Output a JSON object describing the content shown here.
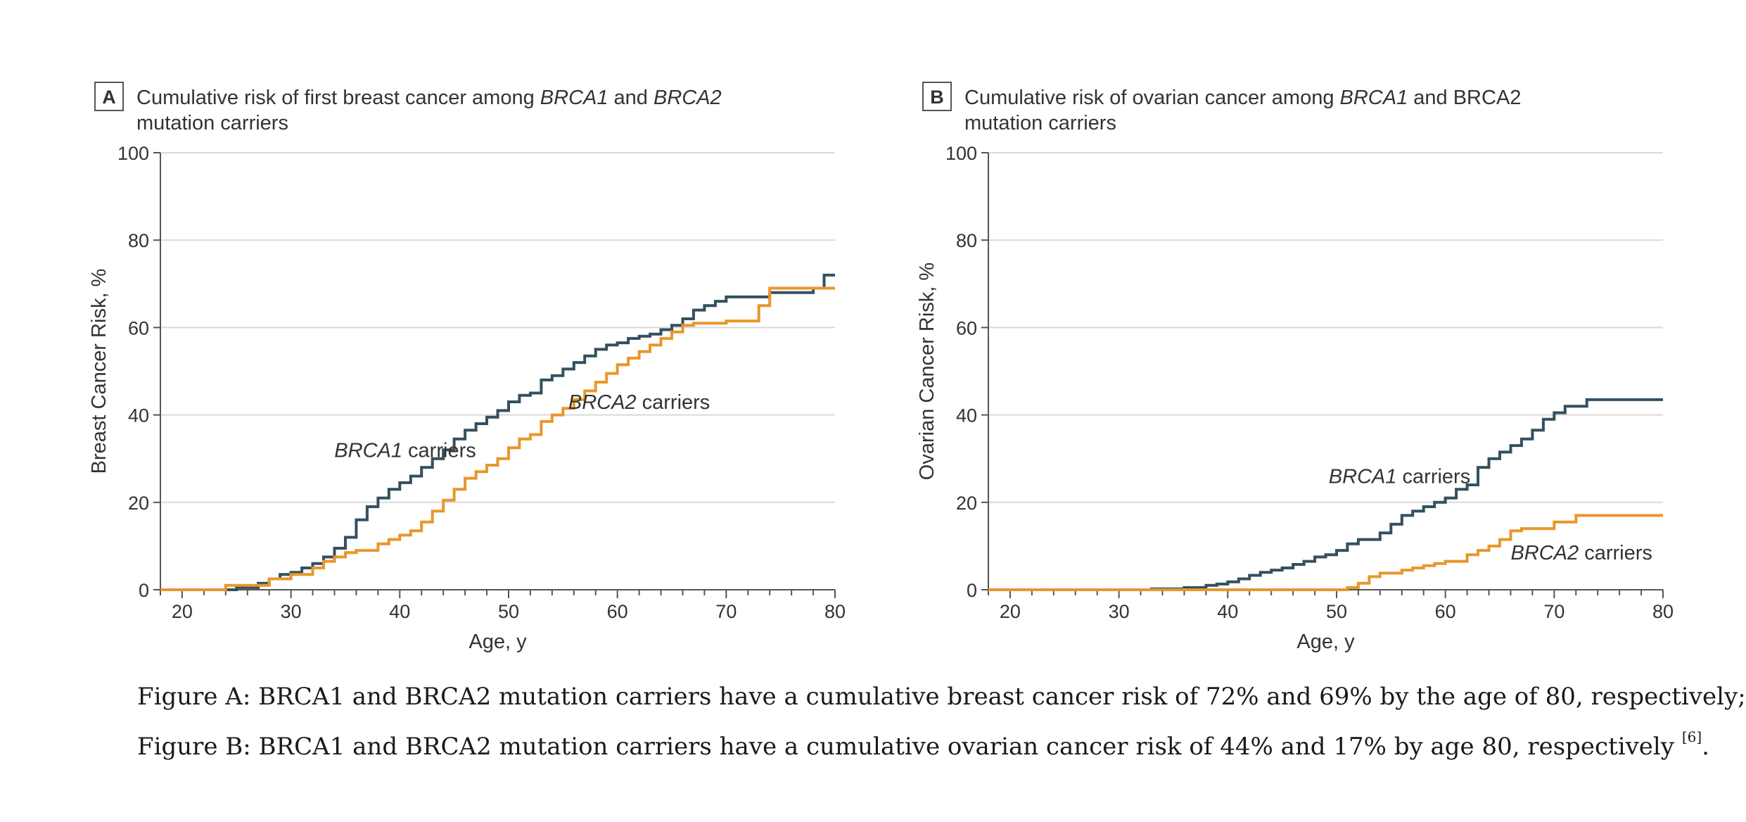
{
  "chart_data": [
    {
      "type": "line",
      "panel_label": "A",
      "title": {
        "line1": [
          {
            "text": "Cumulative risk of first breast cancer among ",
            "italic": false
          },
          {
            "text": "BRCA1",
            "italic": true
          },
          {
            "text": " and ",
            "italic": false
          },
          {
            "text": "BRCA2",
            "italic": true
          }
        ],
        "line2": "mutation carriers"
      },
      "xlabel": "Age, y",
      "ylabel": "Breast Cancer Risk, %",
      "xlim": [
        18,
        80
      ],
      "ylim": [
        0,
        100
      ],
      "xticks": [
        20,
        30,
        40,
        50,
        60,
        70,
        80
      ],
      "yticks": [
        0,
        20,
        40,
        60,
        80,
        100
      ],
      "grid": true,
      "step": true,
      "series": [
        {
          "name_italic": "BRCA1",
          "name_suffix": " carriers",
          "color": "#34505f",
          "label_anchor": [
            40.5,
            32
          ],
          "label_align": "middle",
          "x": [
            18,
            25,
            27,
            28,
            29,
            30,
            31,
            32,
            33,
            34,
            35,
            36,
            37,
            38,
            39,
            40,
            41,
            42,
            43,
            44,
            45,
            46,
            47,
            48,
            49,
            50,
            51,
            52,
            53,
            54,
            55,
            56,
            57,
            58,
            59,
            60,
            61,
            62,
            63,
            64,
            65,
            66,
            67,
            68,
            69,
            70,
            72,
            74,
            76,
            78,
            79,
            80
          ],
          "y": [
            0,
            0.5,
            1.5,
            2.5,
            3.5,
            4,
            5,
            6,
            7.5,
            9.5,
            12,
            16,
            19,
            21,
            23,
            24.5,
            26,
            28,
            30,
            32,
            34.5,
            36.5,
            38,
            39.5,
            41,
            43,
            44.5,
            45,
            48,
            49,
            50.5,
            52,
            53.5,
            55,
            56,
            56.5,
            57.5,
            58,
            58.5,
            59.5,
            60.5,
            62,
            64,
            65,
            66,
            67,
            67,
            68,
            68,
            69,
            72,
            72
          ]
        },
        {
          "name_italic": "BRCA2",
          "name_suffix": " carriers",
          "color": "#e8972b",
          "label_anchor": [
            62,
            43
          ],
          "label_align": "middle",
          "x": [
            18,
            24,
            27,
            28,
            30,
            32,
            33,
            34,
            35,
            36,
            38,
            39,
            40,
            41,
            42,
            43,
            44,
            45,
            46,
            47,
            48,
            49,
            50,
            51,
            52,
            53,
            54,
            55,
            56,
            57,
            58,
            59,
            60,
            61,
            62,
            63,
            64,
            65,
            66,
            67,
            70,
            72,
            73,
            74,
            75,
            77,
            80
          ],
          "y": [
            0,
            1,
            1,
            2.5,
            3.5,
            5,
            6.5,
            7.5,
            8.5,
            9,
            10.5,
            11.5,
            12.5,
            13.5,
            15.5,
            18,
            20.5,
            23,
            25.5,
            27,
            28.5,
            30,
            32.5,
            34.5,
            35.5,
            38.5,
            40,
            41.5,
            43.5,
            45.5,
            47.5,
            49.5,
            51.5,
            53,
            54.5,
            56,
            57.5,
            59,
            60.5,
            61,
            61.5,
            61.5,
            65,
            69,
            69,
            69,
            69
          ]
        }
      ]
    },
    {
      "type": "line",
      "panel_label": "B",
      "title": {
        "line1": [
          {
            "text": "Cumulative risk of ovarian cancer among ",
            "italic": false
          },
          {
            "text": "BRCA1",
            "italic": true
          },
          {
            "text": " and BRCA2",
            "italic": false
          }
        ],
        "line2": "mutation carriers"
      },
      "xlabel": "Age, y",
      "ylabel": "Ovarian Cancer Risk, %",
      "xlim": [
        18,
        80
      ],
      "ylim": [
        0,
        100
      ],
      "xticks": [
        20,
        30,
        40,
        50,
        60,
        70,
        80
      ],
      "yticks": [
        0,
        20,
        40,
        60,
        80,
        100
      ],
      "grid": true,
      "step": true,
      "series": [
        {
          "name_italic": "BRCA1",
          "name_suffix": " carriers",
          "color": "#34505f",
          "label_anchor": [
            62.3,
            26
          ],
          "label_align": "end",
          "x": [
            18,
            33,
            36,
            38,
            39,
            40,
            41,
            42,
            43,
            44,
            45,
            46,
            47,
            48,
            49,
            50,
            51,
            52,
            54,
            55,
            56,
            57,
            58,
            59,
            60,
            61,
            62,
            63,
            64,
            65,
            66,
            67,
            68,
            69,
            70,
            71,
            73,
            80
          ],
          "y": [
            0,
            0.2,
            0.5,
            1,
            1.3,
            1.8,
            2.5,
            3.3,
            4,
            4.5,
            5,
            5.8,
            6.5,
            7.5,
            8,
            9,
            10.5,
            11.5,
            13,
            15,
            17,
            18,
            19,
            20,
            21,
            23,
            24,
            28,
            30,
            31.5,
            33,
            34.5,
            36.5,
            39,
            40.5,
            42,
            43.5,
            43.5
          ]
        },
        {
          "name_italic": "BRCA2",
          "name_suffix": " carriers",
          "color": "#e8972b",
          "label_anchor": [
            66,
            8.5
          ],
          "label_align": "start",
          "x": [
            18,
            51,
            52,
            53,
            54,
            56,
            57,
            58,
            59,
            60,
            62,
            63,
            64,
            65,
            66,
            67,
            68,
            70,
            72,
            80
          ],
          "y": [
            0,
            0.5,
            1.5,
            3,
            3.8,
            4.5,
            5,
            5.5,
            6,
            6.5,
            8,
            9,
            10,
            11.5,
            13.5,
            14,
            14,
            15.5,
            17,
            17
          ]
        }
      ]
    }
  ],
  "caption": {
    "line1": "Figure A: BRCA1 and BRCA2 mutation carriers have a cumulative breast cancer risk of 72% and 69% by the age of 80, respectively;",
    "line2_text": "Figure B: BRCA1 and BRCA2 mutation carriers have a cumulative ovarian cancer risk of 44% and 17% by age 80, respectively ",
    "line2_ref": "[6]",
    "line2_end": "."
  }
}
